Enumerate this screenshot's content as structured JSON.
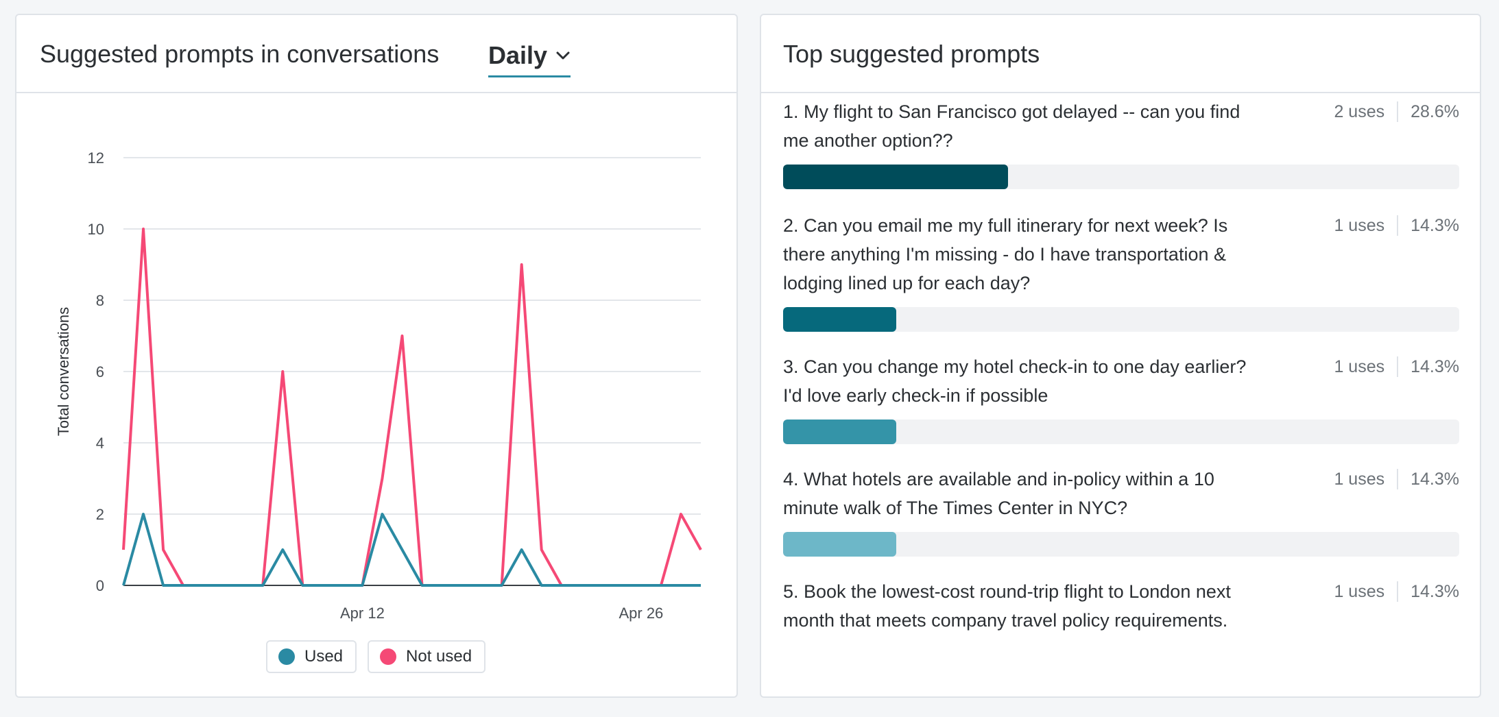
{
  "left_panel": {
    "title": "Suggested prompts in conversations",
    "period": "Daily"
  },
  "chart_data": {
    "type": "line",
    "ylabel": "Total conversations",
    "ylim": [
      0,
      12
    ],
    "yticks": [
      "0",
      "2",
      "4",
      "6",
      "8",
      "10",
      "12"
    ],
    "x": [
      1,
      2,
      3,
      4,
      5,
      6,
      7,
      8,
      9,
      10,
      11,
      12,
      13,
      14,
      15,
      16,
      17,
      18,
      19,
      20,
      21,
      22,
      23,
      24,
      25,
      26,
      27,
      28,
      29,
      30
    ],
    "xticks": [
      {
        "x": 13,
        "label": "Apr 12"
      },
      {
        "x": 27,
        "label": "Apr 26"
      }
    ],
    "series": [
      {
        "name": "Used",
        "color": "#2a8aa3",
        "values": [
          0,
          2,
          0,
          0,
          0,
          0,
          0,
          0,
          1,
          0,
          0,
          0,
          0,
          2,
          1,
          0,
          0,
          0,
          0,
          0,
          1,
          0,
          0,
          0,
          0,
          0,
          0,
          0,
          0,
          0
        ]
      },
      {
        "name": "Not used",
        "color": "#f54976",
        "values": [
          1,
          10,
          1,
          0,
          0,
          0,
          0,
          0,
          6,
          0,
          0,
          0,
          0,
          3,
          7,
          0,
          0,
          0,
          0,
          0,
          9,
          1,
          0,
          0,
          0,
          0,
          0,
          0,
          2,
          1
        ]
      }
    ],
    "grid": true,
    "legend": "bottom-center"
  },
  "legend": {
    "used_label": "Used",
    "not_used_label": "Not used"
  },
  "right_panel": {
    "title": "Top suggested prompts",
    "prompts": [
      {
        "text": "1. My flight to San Francisco got delayed -- can you find me another option??",
        "uses": "2 uses",
        "percent": "28.6%",
        "share": 0.333,
        "color": "#004c5a"
      },
      {
        "text": "2. Can you email me my full itinerary for next week? Is there anything I'm missing - do I have transportation & lodging lined up for each day?",
        "uses": "1 uses",
        "percent": "14.3%",
        "share": 0.167,
        "color": "#06697c"
      },
      {
        "text": "3. Can you change my hotel check-in to one day earlier? I'd love early check-in if possible",
        "uses": "1 uses",
        "percent": "14.3%",
        "share": 0.167,
        "color": "#3494a8"
      },
      {
        "text": "4. What hotels are available and in-policy within a 10 minute walk of The Times Center in NYC?",
        "uses": "1 uses",
        "percent": "14.3%",
        "share": 0.167,
        "color": "#6db7c8"
      },
      {
        "text": "5. Book the lowest-cost round-trip flight to London next month that meets company travel policy requirements.",
        "uses": "1 uses",
        "percent": "14.3%",
        "share": 0.167,
        "color": "#9ccfdb"
      }
    ]
  }
}
